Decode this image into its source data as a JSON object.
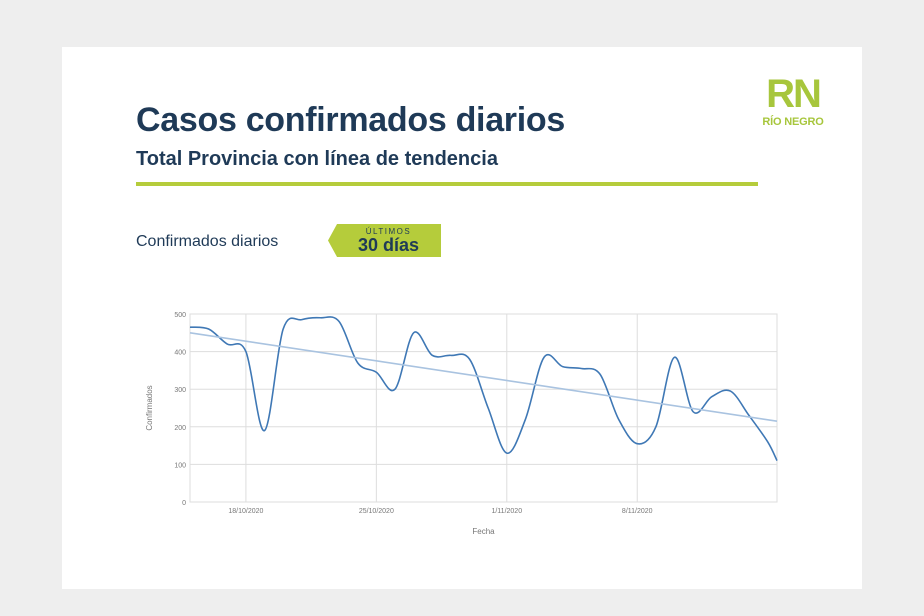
{
  "header": {
    "title": "Casos confirmados diarios",
    "subtitle": "Total Provincia con línea de tendencia"
  },
  "logo": {
    "mark": "RN",
    "text": "RÍO NEGRO"
  },
  "section": {
    "label": "Confirmados diarios",
    "badge_top": "ÚLTIMOS",
    "badge_main": "30 días"
  },
  "colors": {
    "title": "#1f3a57",
    "accent": "#b5cc3b",
    "logo": "#a7c63c",
    "series": "#3f78b5",
    "trend": "#a9c3e0",
    "grid": "#dddddd"
  },
  "chart_data": {
    "type": "line",
    "xlabel": "Fecha",
    "ylabel": "Confirmados",
    "ylim": [
      0,
      500
    ],
    "yticks": [
      0,
      100,
      200,
      300,
      400,
      500
    ],
    "xlim": [
      0,
      31.5
    ],
    "xticks": [
      {
        "x": 3,
        "label": "18/10/2020"
      },
      {
        "x": 10,
        "label": "25/10/2020"
      },
      {
        "x": 17,
        "label": "1/11/2020"
      },
      {
        "x": 24,
        "label": "8/11/2020"
      }
    ],
    "grid": true,
    "series": [
      {
        "role": "daily",
        "x": [
          0,
          1,
          2,
          3,
          4,
          5,
          6,
          7,
          8,
          9,
          10,
          11,
          12,
          13,
          14,
          15,
          16,
          17,
          18,
          19,
          20,
          21,
          22,
          23,
          24,
          25,
          26,
          27,
          28,
          29,
          30,
          31,
          31.5
        ],
        "values": [
          465,
          460,
          420,
          400,
          190,
          460,
          485,
          490,
          480,
          370,
          345,
          300,
          450,
          390,
          390,
          380,
          250,
          130,
          220,
          385,
          360,
          355,
          340,
          220,
          155,
          200,
          385,
          240,
          280,
          295,
          230,
          160,
          110
        ]
      },
      {
        "role": "trend",
        "x": [
          0,
          31.5
        ],
        "values": [
          450,
          215
        ]
      }
    ]
  }
}
